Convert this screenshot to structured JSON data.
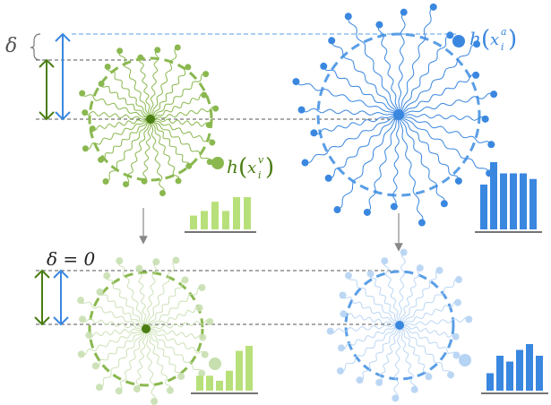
{
  "labels": {
    "delta": "δ",
    "delta_zero": "δ = 0",
    "h_green": "h",
    "h_green_sub": "i",
    "h_green_sup": "v",
    "h_green_x": "x",
    "h_blue": "h",
    "h_blue_sub": "i",
    "h_blue_sup": "a",
    "h_blue_x": "x"
  },
  "colors": {
    "green_dark": "#4a7d12",
    "green_mid": "#8ab84f",
    "green_light": "#b8e07a",
    "green_faded": "#c8dfb0",
    "blue_dark": "#3a87e0",
    "blue_mid": "#5a9ee6",
    "blue_light": "#b5d3f3",
    "gray": "#7d7d7d",
    "dash": "#555555"
  },
  "histograms": {
    "green_top": [
      3,
      4,
      6,
      4,
      7,
      7
    ],
    "blue_top": [
      8,
      12,
      10,
      10,
      10,
      9
    ],
    "green_bottom": [
      3,
      3,
      2,
      4,
      8,
      9
    ],
    "blue_bottom": [
      3,
      6,
      5,
      7,
      8,
      6
    ]
  }
}
